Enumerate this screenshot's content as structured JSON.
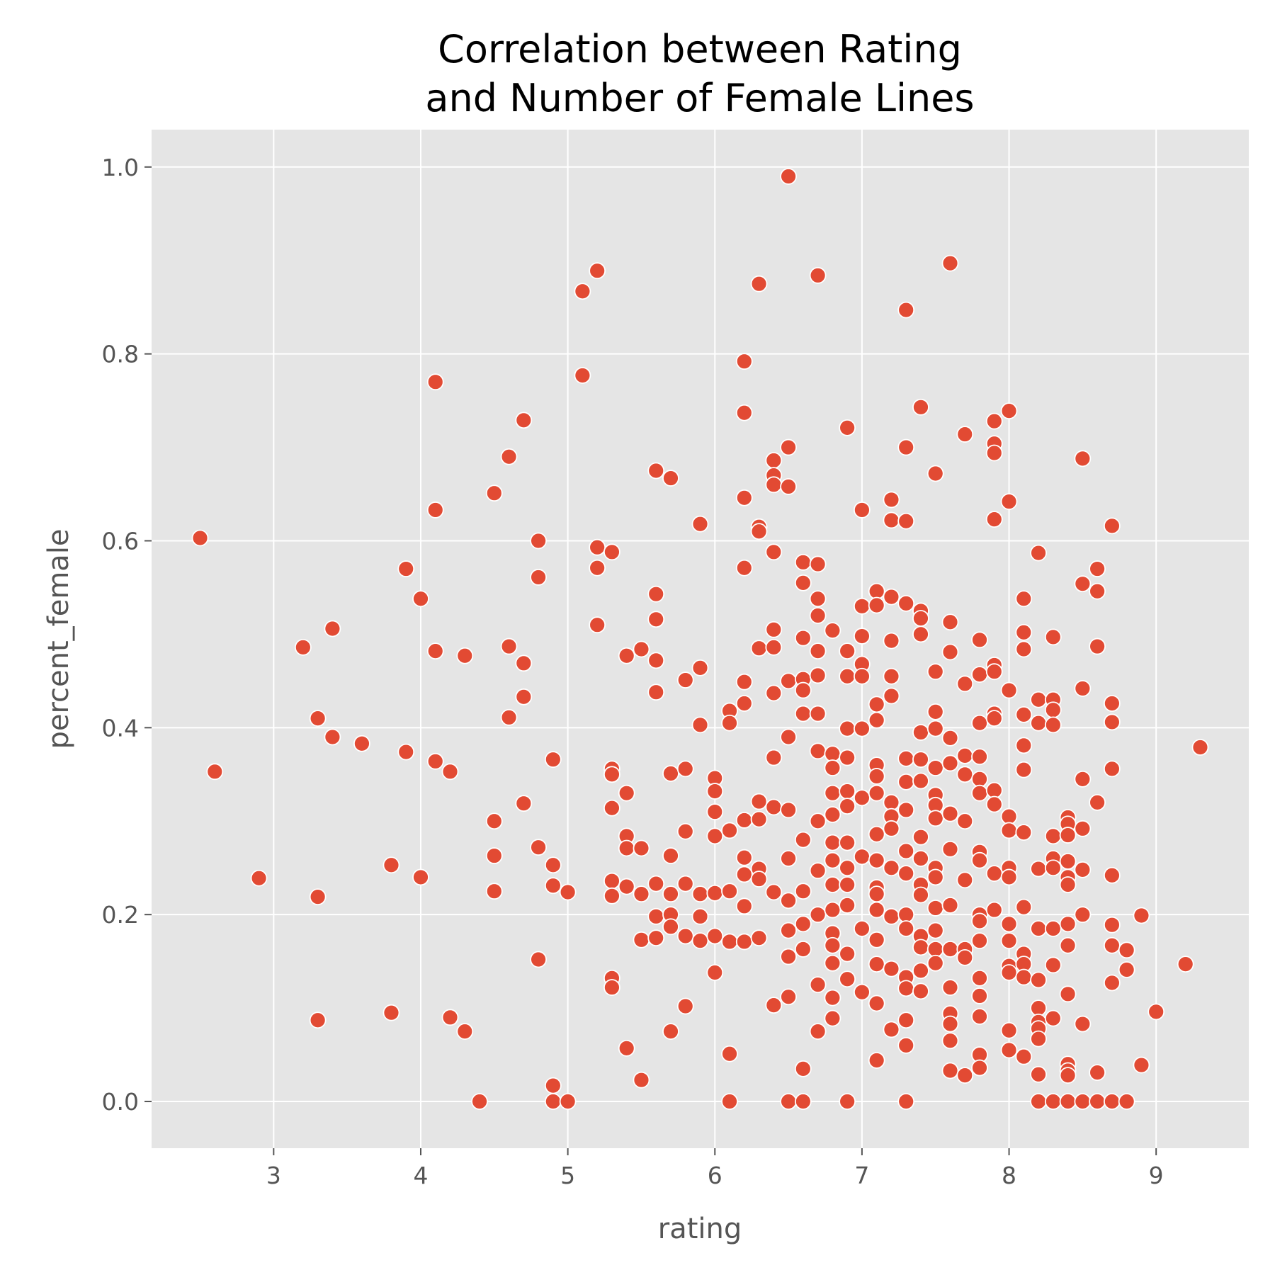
{
  "chart_data": {
    "type": "scatter",
    "title_lines": [
      "Correlation between Rating",
      "and Number of Female Lines"
    ],
    "xlabel": "rating",
    "ylabel": "percent_female",
    "xlim": [
      2.17,
      9.63
    ],
    "ylim": [
      -0.05,
      1.04
    ],
    "x_ticks": [
      3,
      4,
      5,
      6,
      7,
      8,
      9
    ],
    "x_tick_labels": [
      "3",
      "4",
      "5",
      "6",
      "7",
      "8",
      "9"
    ],
    "y_ticks": [
      0.0,
      0.2,
      0.4,
      0.6,
      0.8,
      1.0
    ],
    "y_tick_labels": [
      "0.0",
      "0.2",
      "0.4",
      "0.6",
      "0.8",
      "1.0"
    ],
    "grid": true,
    "colors": {
      "point": "#E24A33",
      "background": "#E5E5E5",
      "grid": "#FFFFFF",
      "tick_text": "#555555",
      "title": "#000000"
    },
    "x": [
      2.5,
      2.6,
      2.9,
      3.2,
      3.3,
      3.3,
      3.3,
      3.4,
      3.4,
      3.6,
      3.8,
      3.8,
      3.9,
      3.9,
      4.0,
      4.0,
      4.1,
      4.1,
      4.1,
      4.1,
      4.2,
      4.2,
      4.3,
      4.3,
      4.4,
      4.5,
      4.5,
      4.5,
      4.5,
      4.6,
      4.6,
      4.6,
      4.7,
      4.7,
      4.7,
      4.7,
      4.8,
      4.8,
      4.8,
      4.8,
      4.9,
      4.9,
      4.9,
      4.9,
      4.9,
      5.0,
      5.0,
      5.1,
      5.1,
      5.2,
      5.2,
      5.2,
      5.2,
      5.3,
      5.3,
      5.3,
      5.3,
      5.3,
      5.3,
      5.3,
      5.3,
      5.4,
      5.4,
      5.4,
      5.4,
      5.4,
      5.4,
      5.5,
      5.5,
      5.5,
      5.5,
      5.5,
      5.6,
      5.6,
      5.6,
      5.6,
      5.6,
      5.6,
      5.6,
      5.6,
      5.7,
      5.7,
      5.7,
      5.7,
      5.7,
      5.7,
      5.7,
      5.8,
      5.8,
      5.8,
      5.8,
      5.8,
      5.8,
      5.9,
      5.9,
      5.9,
      5.9,
      5.9,
      5.9,
      6.0,
      6.0,
      6.0,
      6.0,
      6.0,
      6.0,
      6.0,
      6.1,
      6.1,
      6.1,
      6.1,
      6.1,
      6.1,
      6.1,
      6.2,
      6.2,
      6.2,
      6.2,
      6.2,
      6.2,
      6.2,
      6.2,
      6.2,
      6.2,
      6.2,
      6.3,
      6.3,
      6.3,
      6.3,
      6.3,
      6.3,
      6.3,
      6.3,
      6.3,
      6.4,
      6.4,
      6.4,
      6.4,
      6.4,
      6.4,
      6.4,
      6.4,
      6.4,
      6.4,
      6.4,
      6.5,
      6.5,
      6.5,
      6.5,
      6.5,
      6.5,
      6.5,
      6.5,
      6.5,
      6.5,
      6.5,
      6.5,
      6.6,
      6.6,
      6.6,
      6.6,
      6.6,
      6.6,
      6.6,
      6.6,
      6.6,
      6.6,
      6.6,
      6.6,
      6.7,
      6.7,
      6.7,
      6.7,
      6.7,
      6.7,
      6.7,
      6.7,
      6.7,
      6.7,
      6.7,
      6.7,
      6.7,
      6.8,
      6.8,
      6.8,
      6.8,
      6.8,
      6.8,
      6.8,
      6.8,
      6.8,
      6.8,
      6.8,
      6.8,
      6.8,
      6.8,
      6.9,
      6.9,
      6.9,
      6.9,
      6.9,
      6.9,
      6.9,
      6.9,
      6.9,
      6.9,
      6.9,
      6.9,
      6.9,
      6.9,
      7.0,
      7.0,
      7.0,
      7.0,
      7.0,
      7.0,
      7.0,
      7.0,
      7.0,
      7.0,
      7.1,
      7.1,
      7.1,
      7.1,
      7.1,
      7.1,
      7.1,
      7.1,
      7.1,
      7.1,
      7.1,
      7.1,
      7.1,
      7.1,
      7.1,
      7.1,
      7.2,
      7.2,
      7.2,
      7.2,
      7.2,
      7.2,
      7.2,
      7.2,
      7.2,
      7.2,
      7.2,
      7.2,
      7.2,
      7.3,
      7.3,
      7.3,
      7.3,
      7.3,
      7.3,
      7.3,
      7.3,
      7.3,
      7.3,
      7.3,
      7.3,
      7.3,
      7.3,
      7.3,
      7.3,
      7.4,
      7.4,
      7.4,
      7.4,
      7.4,
      7.4,
      7.4,
      7.4,
      7.4,
      7.4,
      7.4,
      7.4,
      7.4,
      7.4,
      7.4,
      7.5,
      7.5,
      7.5,
      7.5,
      7.5,
      7.5,
      7.5,
      7.5,
      7.5,
      7.5,
      7.5,
      7.5,
      7.5,
      7.5,
      7.6,
      7.6,
      7.6,
      7.6,
      7.6,
      7.6,
      7.6,
      7.6,
      7.6,
      7.6,
      7.6,
      7.6,
      7.6,
      7.6,
      7.7,
      7.7,
      7.7,
      7.7,
      7.7,
      7.7,
      7.7,
      7.7,
      7.7,
      7.8,
      7.8,
      7.8,
      7.8,
      7.8,
      7.8,
      7.8,
      7.8,
      7.8,
      7.8,
      7.8,
      7.8,
      7.8,
      7.8,
      7.8,
      7.8,
      7.9,
      7.9,
      7.9,
      7.9,
      7.9,
      7.9,
      7.9,
      7.9,
      7.9,
      7.9,
      7.9,
      7.9,
      8.0,
      8.0,
      8.0,
      8.0,
      8.0,
      8.0,
      8.0,
      8.0,
      8.0,
      8.0,
      8.0,
      8.0,
      8.0,
      8.1,
      8.1,
      8.1,
      8.1,
      8.1,
      8.1,
      8.1,
      8.1,
      8.1,
      8.1,
      8.1,
      8.1,
      8.2,
      8.2,
      8.2,
      8.2,
      8.2,
      8.2,
      8.2,
      8.2,
      8.2,
      8.2,
      8.2,
      8.2,
      8.3,
      8.3,
      8.3,
      8.3,
      8.3,
      8.3,
      8.3,
      8.3,
      8.3,
      8.3,
      8.3,
      8.4,
      8.4,
      8.4,
      8.4,
      8.4,
      8.4,
      8.4,
      8.4,
      8.4,
      8.4,
      8.4,
      8.4,
      8.4,
      8.5,
      8.5,
      8.5,
      8.5,
      8.5,
      8.5,
      8.5,
      8.5,
      8.5,
      8.6,
      8.6,
      8.6,
      8.6,
      8.6,
      8.6,
      8.7,
      8.7,
      8.7,
      8.7,
      8.7,
      8.7,
      8.7,
      8.7,
      8.7,
      8.8,
      8.8,
      8.8,
      8.9,
      8.9,
      9.0,
      9.2,
      9.3
    ],
    "y": [
      0.603,
      0.353,
      0.239,
      0.486,
      0.41,
      0.219,
      0.087,
      0.506,
      0.39,
      0.383,
      0.253,
      0.095,
      0.57,
      0.374,
      0.538,
      0.24,
      0.77,
      0.633,
      0.482,
      0.364,
      0.353,
      0.09,
      0.477,
      0.075,
      0.0,
      0.651,
      0.3,
      0.263,
      0.225,
      0.69,
      0.487,
      0.411,
      0.729,
      0.469,
      0.433,
      0.319,
      0.6,
      0.561,
      0.272,
      0.152,
      0.366,
      0.253,
      0.231,
      0.017,
      0.0,
      0.224,
      0.0,
      0.867,
      0.777,
      0.889,
      0.593,
      0.571,
      0.51,
      0.588,
      0.356,
      0.35,
      0.314,
      0.236,
      0.22,
      0.132,
      0.122,
      0.477,
      0.33,
      0.284,
      0.271,
      0.23,
      0.057,
      0.484,
      0.271,
      0.222,
      0.173,
      0.023,
      0.675,
      0.543,
      0.516,
      0.472,
      0.438,
      0.233,
      0.198,
      0.175,
      0.667,
      0.351,
      0.263,
      0.222,
      0.2,
      0.187,
      0.075,
      0.451,
      0.356,
      0.289,
      0.233,
      0.177,
      0.102,
      0.618,
      0.464,
      0.403,
      0.222,
      0.198,
      0.172,
      0.346,
      0.332,
      0.31,
      0.284,
      0.223,
      0.177,
      0.138,
      0.418,
      0.405,
      0.29,
      0.225,
      0.171,
      0.051,
      0.0,
      0.792,
      0.737,
      0.646,
      0.571,
      0.449,
      0.426,
      0.301,
      0.261,
      0.243,
      0.209,
      0.171,
      0.875,
      0.615,
      0.61,
      0.485,
      0.321,
      0.302,
      0.249,
      0.238,
      0.175,
      0.686,
      0.67,
      0.66,
      0.588,
      0.505,
      0.486,
      0.437,
      0.368,
      0.315,
      0.224,
      0.103,
      0.99,
      0.7,
      0.658,
      0.45,
      0.39,
      0.312,
      0.26,
      0.215,
      0.183,
      0.155,
      0.112,
      0.0,
      0.577,
      0.555,
      0.496,
      0.452,
      0.44,
      0.415,
      0.28,
      0.225,
      0.19,
      0.163,
      0.035,
      0.0,
      0.884,
      0.575,
      0.538,
      0.52,
      0.482,
      0.456,
      0.415,
      0.375,
      0.3,
      0.247,
      0.2,
      0.125,
      0.075,
      0.504,
      0.372,
      0.357,
      0.33,
      0.307,
      0.277,
      0.258,
      0.232,
      0.205,
      0.18,
      0.167,
      0.148,
      0.111,
      0.089,
      0.721,
      0.482,
      0.455,
      0.399,
      0.368,
      0.332,
      0.316,
      0.277,
      0.25,
      0.232,
      0.21,
      0.158,
      0.131,
      0.0,
      0.633,
      0.53,
      0.498,
      0.468,
      0.455,
      0.399,
      0.325,
      0.262,
      0.185,
      0.117,
      0.546,
      0.531,
      0.425,
      0.408,
      0.36,
      0.348,
      0.33,
      0.286,
      0.258,
      0.229,
      0.222,
      0.205,
      0.173,
      0.147,
      0.105,
      0.044,
      0.644,
      0.622,
      0.54,
      0.493,
      0.455,
      0.434,
      0.32,
      0.305,
      0.292,
      0.25,
      0.198,
      0.142,
      0.077,
      0.847,
      0.7,
      0.621,
      0.533,
      0.367,
      0.342,
      0.312,
      0.268,
      0.244,
      0.2,
      0.185,
      0.133,
      0.121,
      0.087,
      0.06,
      0.0,
      0.743,
      0.525,
      0.517,
      0.5,
      0.395,
      0.366,
      0.343,
      0.283,
      0.26,
      0.232,
      0.221,
      0.177,
      0.165,
      0.14,
      0.118,
      0.672,
      0.46,
      0.417,
      0.399,
      0.357,
      0.328,
      0.317,
      0.303,
      0.25,
      0.24,
      0.207,
      0.183,
      0.163,
      0.148,
      0.897,
      0.513,
      0.481,
      0.389,
      0.362,
      0.308,
      0.27,
      0.21,
      0.163,
      0.122,
      0.094,
      0.083,
      0.065,
      0.033,
      0.714,
      0.447,
      0.37,
      0.35,
      0.3,
      0.237,
      0.163,
      0.154,
      0.028,
      0.494,
      0.457,
      0.405,
      0.369,
      0.345,
      0.33,
      0.267,
      0.258,
      0.2,
      0.193,
      0.172,
      0.132,
      0.113,
      0.091,
      0.05,
      0.036,
      0.728,
      0.704,
      0.694,
      0.623,
      0.467,
      0.46,
      0.415,
      0.41,
      0.333,
      0.318,
      0.244,
      0.205,
      0.739,
      0.642,
      0.44,
      0.305,
      0.29,
      0.25,
      0.24,
      0.19,
      0.172,
      0.145,
      0.138,
      0.076,
      0.055,
      0.538,
      0.502,
      0.484,
      0.414,
      0.381,
      0.355,
      0.288,
      0.208,
      0.158,
      0.147,
      0.133,
      0.048,
      0.587,
      0.43,
      0.405,
      0.249,
      0.185,
      0.13,
      0.1,
      0.085,
      0.078,
      0.067,
      0.029,
      0.0,
      0.497,
      0.43,
      0.419,
      0.403,
      0.284,
      0.26,
      0.25,
      0.185,
      0.146,
      0.089,
      0.0,
      0.304,
      0.297,
      0.285,
      0.257,
      0.24,
      0.232,
      0.19,
      0.167,
      0.115,
      0.04,
      0.033,
      0.028,
      0.0,
      0.688,
      0.554,
      0.442,
      0.345,
      0.292,
      0.248,
      0.2,
      0.083,
      0.0,
      0.57,
      0.546,
      0.487,
      0.32,
      0.031,
      0.0,
      0.616,
      0.426,
      0.406,
      0.356,
      0.242,
      0.189,
      0.167,
      0.127,
      0.0,
      0.162,
      0.141,
      0.0,
      0.199,
      0.039,
      0.096,
      0.147,
      0.379
    ]
  }
}
